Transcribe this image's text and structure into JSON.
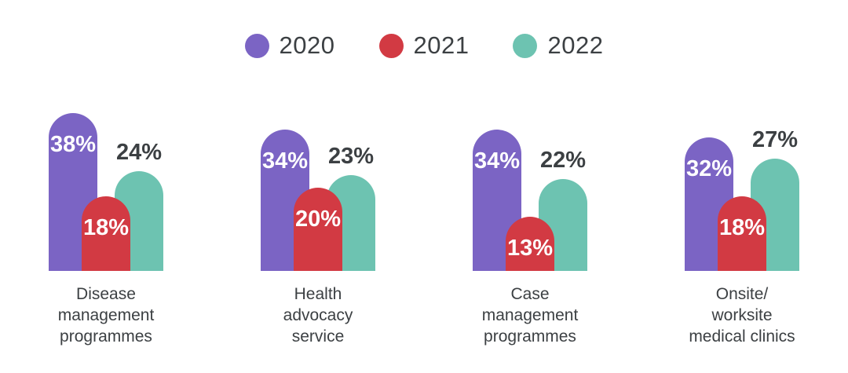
{
  "legend": {
    "items": [
      {
        "label": "2020",
        "color": "#7B64C4"
      },
      {
        "label": "2021",
        "color": "#D23A43"
      },
      {
        "label": "2022",
        "color": "#6DC3B1"
      }
    ]
  },
  "colors": {
    "background": "#FFFFFF",
    "text_dark": "#3C4043",
    "value_on_bar": "#FFFFFF",
    "purple_2020": "#7B64C4",
    "red_2021": "#D23A43",
    "teal_2022": "#6DC3B1"
  },
  "chart_data": {
    "type": "bar",
    "categories": [
      "Disease management programmes",
      "Health advocacy service",
      "Case management programmes",
      "Onsite/worksite medical clinics"
    ],
    "category_lines": [
      [
        "Disease",
        "management",
        "programmes"
      ],
      [
        "Health",
        "advocacy",
        "service"
      ],
      [
        "Case",
        "management",
        "programmes"
      ],
      [
        "Onsite/",
        "worksite",
        "medical clinics"
      ]
    ],
    "series": [
      {
        "name": "2020",
        "color": "#7B64C4",
        "values": [
          38,
          34,
          34,
          32
        ],
        "label_position": "inside",
        "label_color": "#FFFFFF"
      },
      {
        "name": "2021",
        "color": "#D23A43",
        "values": [
          18,
          20,
          13,
          18
        ],
        "label_position": "inside",
        "label_color": "#FFFFFF"
      },
      {
        "name": "2022",
        "color": "#6DC3B1",
        "values": [
          24,
          23,
          22,
          27
        ],
        "label_position": "above",
        "label_color": "#3C4043"
      }
    ],
    "value_suffix": "%",
    "ylim": [
      0,
      40
    ],
    "grid": false,
    "legend_position": "top",
    "bar_style": "rounded-top-overlapping"
  }
}
